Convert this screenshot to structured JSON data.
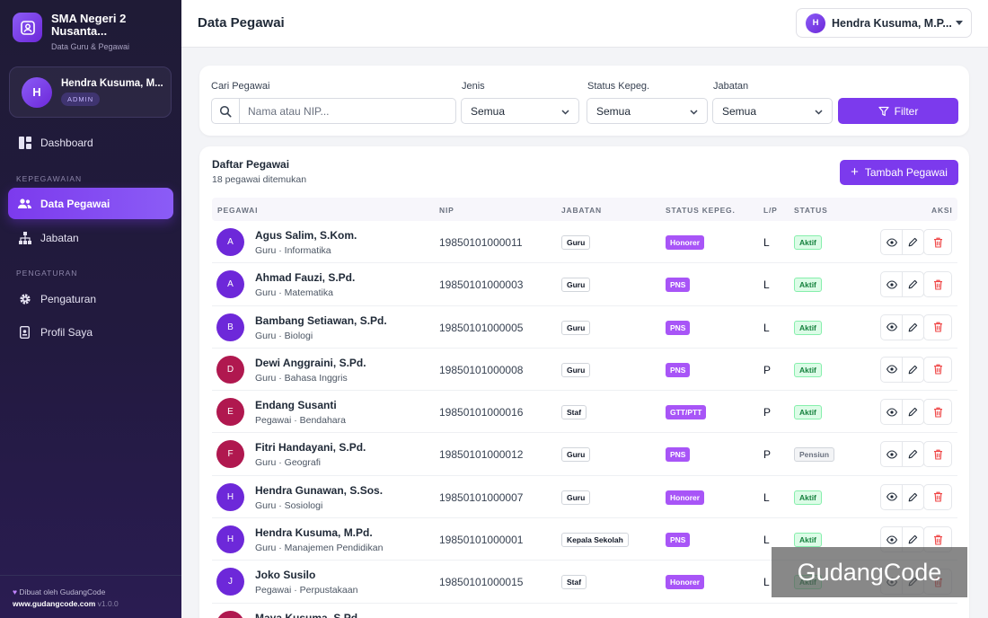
{
  "brand": {
    "title": "SMA Negeri 2 Nusanta...",
    "subtitle": "Data Guru & Pegawai"
  },
  "user_card": {
    "initial": "H",
    "name": "Hendra Kusuma, M...",
    "role": "ADMIN"
  },
  "nav": {
    "dashboard": "Dashboard",
    "section_kepegawaian": "KEPEGAWAIAN",
    "data_pegawai": "Data Pegawai",
    "jabatan": "Jabatan",
    "section_pengaturan": "PENGATURAN",
    "pengaturan": "Pengaturan",
    "profil": "Profil Saya"
  },
  "footer": {
    "made_by": "Dibuat oleh GudangCode",
    "url": "www.gudangcode.com",
    "version": "v1.0.0"
  },
  "header": {
    "title": "Data Pegawai",
    "user_initial": "H",
    "user_name": "Hendra Kusuma, M.P..."
  },
  "filters": {
    "search_label": "Cari Pegawai",
    "search_placeholder": "Nama atau NIP...",
    "jenis_label": "Jenis",
    "jenis_value": "Semua",
    "status_label": "Status Kepeg.",
    "status_value": "Semua",
    "jabatan_label": "Jabatan",
    "jabatan_value": "Semua",
    "button": "Filter"
  },
  "list": {
    "title": "Daftar Pegawai",
    "count": "18 pegawai ditemukan",
    "add_button": "Tambah Pegawai",
    "columns": {
      "pegawai": "PEGAWAI",
      "nip": "NIP",
      "jabatan": "JABATAN",
      "status_kepeg": "STATUS KEPEG.",
      "lp": "L/P",
      "status": "STATUS",
      "aksi": "AKSI"
    },
    "rows": [
      {
        "initial": "A",
        "color": "#6d28d9",
        "name": "Agus Salim, S.Kom.",
        "sub": "Guru · Informatika",
        "nip": "19850101000011",
        "jabatan": "Guru",
        "status_kepeg": "Honorer",
        "lp": "L",
        "status": "Aktif"
      },
      {
        "initial": "A",
        "color": "#6d28d9",
        "name": "Ahmad Fauzi, S.Pd.",
        "sub": "Guru · Matematika",
        "nip": "19850101000003",
        "jabatan": "Guru",
        "status_kepeg": "PNS",
        "lp": "L",
        "status": "Aktif"
      },
      {
        "initial": "B",
        "color": "#6d28d9",
        "name": "Bambang Setiawan, S.Pd.",
        "sub": "Guru · Biologi",
        "nip": "19850101000005",
        "jabatan": "Guru",
        "status_kepeg": "PNS",
        "lp": "L",
        "status": "Aktif"
      },
      {
        "initial": "D",
        "color": "#b0184f",
        "name": "Dewi Anggraini, S.Pd.",
        "sub": "Guru · Bahasa Inggris",
        "nip": "19850101000008",
        "jabatan": "Guru",
        "status_kepeg": "PNS",
        "lp": "P",
        "status": "Aktif"
      },
      {
        "initial": "E",
        "color": "#b0184f",
        "name": "Endang Susanti",
        "sub": "Pegawai · Bendahara",
        "nip": "19850101000016",
        "jabatan": "Staf",
        "status_kepeg": "GTT/PTT",
        "lp": "P",
        "status": "Aktif"
      },
      {
        "initial": "F",
        "color": "#b0184f",
        "name": "Fitri Handayani, S.Pd.",
        "sub": "Guru · Geografi",
        "nip": "19850101000012",
        "jabatan": "Guru",
        "status_kepeg": "PNS",
        "lp": "P",
        "status": "Pensiun"
      },
      {
        "initial": "H",
        "color": "#6d28d9",
        "name": "Hendra Gunawan, S.Sos.",
        "sub": "Guru · Sosiologi",
        "nip": "19850101000007",
        "jabatan": "Guru",
        "status_kepeg": "Honorer",
        "lp": "L",
        "status": "Aktif"
      },
      {
        "initial": "H",
        "color": "#6d28d9",
        "name": "Hendra Kusuma, M.Pd.",
        "sub": "Guru · Manajemen Pendidikan",
        "nip": "19850101000001",
        "jabatan": "Kepala Sekolah",
        "status_kepeg": "PNS",
        "lp": "L",
        "status": "Aktif"
      },
      {
        "initial": "J",
        "color": "#6d28d9",
        "name": "Joko Susilo",
        "sub": "Pegawai · Perpustakaan",
        "nip": "19850101000015",
        "jabatan": "Staf",
        "status_kepeg": "Honorer",
        "lp": "L",
        "status": "Aktif"
      },
      {
        "initial": "M",
        "color": "#b0184f",
        "name": "Maya Kusuma, S.Pd.",
        "sub": "",
        "nip": "",
        "jabatan": "",
        "status_kepeg": "",
        "lp": "",
        "status": ""
      }
    ]
  },
  "watermark": "GudangCode"
}
